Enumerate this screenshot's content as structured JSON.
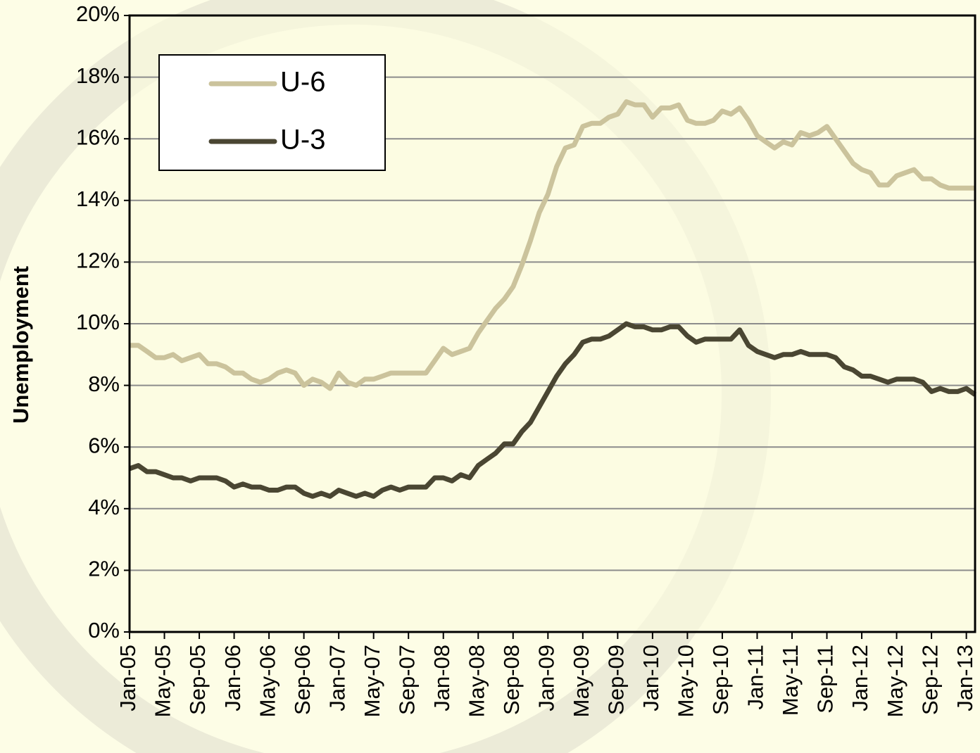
{
  "chart_data": {
    "type": "line",
    "y_label": "Unemployment",
    "categories": [
      "Jan-05",
      null,
      null,
      null,
      "May-05",
      null,
      null,
      null,
      "Sep-05",
      null,
      null,
      null,
      "Jan-06",
      null,
      null,
      null,
      "May-06",
      null,
      null,
      null,
      "Sep-06",
      null,
      null,
      null,
      "Jan-07",
      null,
      null,
      null,
      "May-07",
      null,
      null,
      null,
      "Sep-07",
      null,
      null,
      null,
      "Jan-08",
      null,
      null,
      null,
      "May-08",
      null,
      null,
      null,
      "Sep-08",
      null,
      null,
      null,
      "Jan-09",
      null,
      null,
      null,
      "May-09",
      null,
      null,
      null,
      "Sep-09",
      null,
      null,
      null,
      "Jan-10",
      null,
      null,
      null,
      "May-10",
      null,
      null,
      null,
      "Sep-10",
      null,
      null,
      null,
      "Jan-11",
      null,
      null,
      null,
      "May-11",
      null,
      null,
      null,
      "Sep-11",
      null,
      null,
      null,
      "Jan-12",
      null,
      null,
      null,
      "May-12",
      null,
      null,
      null,
      "Sep-12",
      null,
      null,
      null,
      "Jan-13",
      null
    ],
    "series": [
      {
        "name": "U-6",
        "color": "#cbc39c",
        "values": [
          9.3,
          9.3,
          9.1,
          8.9,
          8.9,
          9.0,
          8.8,
          8.9,
          9.0,
          8.7,
          8.7,
          8.6,
          8.4,
          8.4,
          8.2,
          8.1,
          8.2,
          8.4,
          8.5,
          8.4,
          8.0,
          8.2,
          8.1,
          7.9,
          8.4,
          8.1,
          8.0,
          8.2,
          8.2,
          8.3,
          8.4,
          8.4,
          8.4,
          8.4,
          8.4,
          8.8,
          9.2,
          9.0,
          9.1,
          9.2,
          9.7,
          10.1,
          10.5,
          10.8,
          11.2,
          11.9,
          12.7,
          13.6,
          14.2,
          15.1,
          15.7,
          15.8,
          16.4,
          16.5,
          16.5,
          16.7,
          16.8,
          17.2,
          17.1,
          17.1,
          16.7,
          17.0,
          17.0,
          17.1,
          16.6,
          16.5,
          16.5,
          16.6,
          16.9,
          16.8,
          17.0,
          16.6,
          16.1,
          15.9,
          15.7,
          15.9,
          15.8,
          16.2,
          16.1,
          16.2,
          16.4,
          16.0,
          15.6,
          15.2,
          15.0,
          14.9,
          14.5,
          14.5,
          14.8,
          14.9,
          15.0,
          14.7,
          14.7,
          14.5,
          14.4,
          14.4,
          14.4,
          14.4
        ]
      },
      {
        "name": "U-3",
        "color": "#4a4632",
        "values": [
          5.3,
          5.4,
          5.2,
          5.2,
          5.1,
          5.0,
          5.0,
          4.9,
          5.0,
          5.0,
          5.0,
          4.9,
          4.7,
          4.8,
          4.7,
          4.7,
          4.6,
          4.6,
          4.7,
          4.7,
          4.5,
          4.4,
          4.5,
          4.4,
          4.6,
          4.5,
          4.4,
          4.5,
          4.4,
          4.6,
          4.7,
          4.6,
          4.7,
          4.7,
          4.7,
          5.0,
          5.0,
          4.9,
          5.1,
          5.0,
          5.4,
          5.6,
          5.8,
          6.1,
          6.1,
          6.5,
          6.8,
          7.3,
          7.8,
          8.3,
          8.7,
          9.0,
          9.4,
          9.5,
          9.5,
          9.6,
          9.8,
          10.0,
          9.9,
          9.9,
          9.8,
          9.8,
          9.9,
          9.9,
          9.6,
          9.4,
          9.5,
          9.5,
          9.5,
          9.5,
          9.8,
          9.3,
          9.1,
          9.0,
          8.9,
          9.0,
          9.0,
          9.1,
          9.0,
          9.0,
          9.0,
          8.9,
          8.6,
          8.5,
          8.3,
          8.3,
          8.2,
          8.1,
          8.2,
          8.2,
          8.2,
          8.1,
          7.8,
          7.9,
          7.8,
          7.8,
          7.9,
          7.7
        ]
      }
    ],
    "ylim": [
      0,
      20
    ],
    "yticks": [
      {
        "value": 0,
        "label": "0%"
      },
      {
        "value": 2,
        "label": "2%"
      },
      {
        "value": 4,
        "label": "4%"
      },
      {
        "value": 6,
        "label": "6%"
      },
      {
        "value": 8,
        "label": "8%"
      },
      {
        "value": 10,
        "label": "10%"
      },
      {
        "value": 12,
        "label": "12%"
      },
      {
        "value": 14,
        "label": "14%"
      },
      {
        "value": 16,
        "label": "16%"
      },
      {
        "value": 18,
        "label": "18%"
      },
      {
        "value": 20,
        "label": "20%"
      }
    ],
    "grid": true,
    "legend": "upper-left"
  }
}
